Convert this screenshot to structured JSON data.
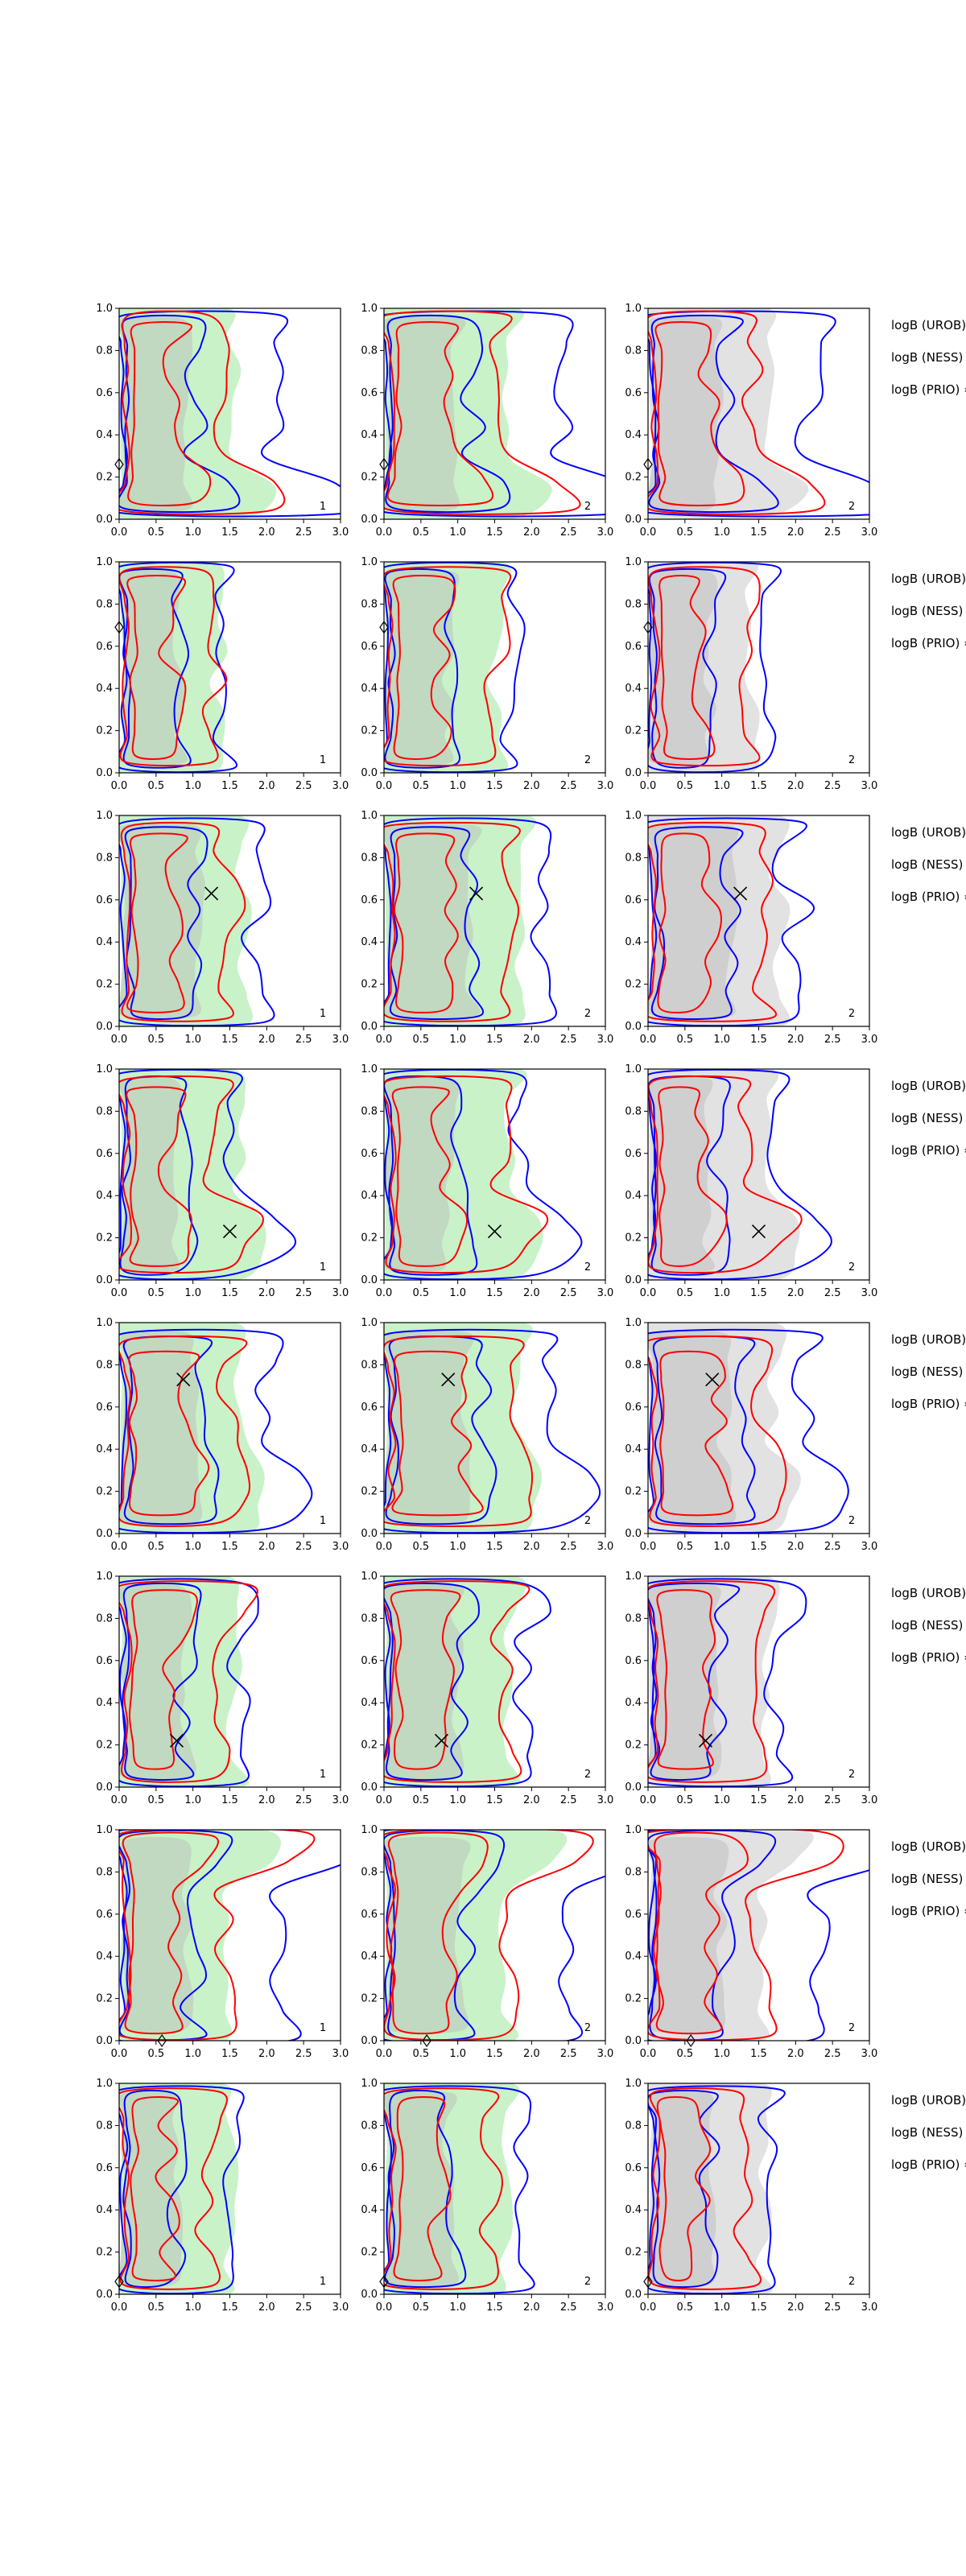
{
  "figure": {
    "colors": {
      "blue": "#0000ff",
      "red": "#ff0000",
      "green_fill": "#c9f2c9",
      "gray_fill": "#d8d8d8"
    },
    "side_labels": [
      "logB (UROB) =",
      "logB (NESS) =",
      "logB (PRIO) ="
    ],
    "axes": {
      "xlim": [
        0,
        3.0
      ],
      "ylim": [
        0,
        1.0
      ],
      "xticks": [
        "0.0",
        "0.5",
        "1.0",
        "1.5",
        "2.0",
        "2.5",
        "3.0"
      ],
      "yticks": [
        "0.0",
        "0.2",
        "0.4",
        "0.6",
        "0.8",
        "1.0"
      ]
    },
    "column_annotations": [
      "1",
      "2",
      "2"
    ],
    "column_fills": [
      "green",
      "green",
      "gray"
    ]
  },
  "chart_data": [
    {
      "type": "contour",
      "row": 1,
      "xlim": [
        0,
        3
      ],
      "ylim": [
        0,
        1
      ],
      "annotation": [
        "1",
        "2",
        "2"
      ],
      "marker": {
        "shape": "diamond",
        "x": 0.0,
        "y": 0.26
      },
      "series": [
        {
          "name": "blue contours",
          "color": "#0000ff"
        },
        {
          "name": "red contours",
          "color": "#ff0000"
        }
      ]
    },
    {
      "type": "contour",
      "row": 2,
      "xlim": [
        0,
        3
      ],
      "ylim": [
        0,
        1
      ],
      "annotation": [
        "1",
        "2",
        "2"
      ],
      "marker": {
        "shape": "diamond",
        "x": 0.0,
        "y": 0.69
      },
      "series": [
        {
          "name": "blue contours",
          "color": "#0000ff"
        },
        {
          "name": "red contours",
          "color": "#ff0000"
        }
      ]
    },
    {
      "type": "contour",
      "row": 3,
      "xlim": [
        0,
        3
      ],
      "ylim": [
        0,
        1
      ],
      "annotation": [
        "1",
        "2",
        "2"
      ],
      "marker": {
        "shape": "x",
        "x": 1.25,
        "y": 0.63
      },
      "series": [
        {
          "name": "blue contours",
          "color": "#0000ff"
        },
        {
          "name": "red contours",
          "color": "#ff0000"
        }
      ]
    },
    {
      "type": "contour",
      "row": 4,
      "xlim": [
        0,
        3
      ],
      "ylim": [
        0,
        1
      ],
      "annotation": [
        "1",
        "2",
        "2"
      ],
      "marker": {
        "shape": "x",
        "x": 1.5,
        "y": 0.23
      },
      "series": [
        {
          "name": "blue contours",
          "color": "#0000ff"
        },
        {
          "name": "red contours",
          "color": "#ff0000"
        }
      ]
    },
    {
      "type": "contour",
      "row": 5,
      "xlim": [
        0,
        3
      ],
      "ylim": [
        0,
        1
      ],
      "annotation": [
        "1",
        "2",
        "2"
      ],
      "marker": {
        "shape": "x",
        "x": 0.87,
        "y": 0.73
      },
      "series": [
        {
          "name": "blue contours",
          "color": "#0000ff"
        },
        {
          "name": "red contours",
          "color": "#ff0000"
        }
      ]
    },
    {
      "type": "contour",
      "row": 6,
      "xlim": [
        0,
        3
      ],
      "ylim": [
        0,
        1
      ],
      "annotation": [
        "1",
        "2",
        "2"
      ],
      "marker": {
        "shape": "x",
        "x": 0.78,
        "y": 0.22
      },
      "series": [
        {
          "name": "blue contours",
          "color": "#0000ff"
        },
        {
          "name": "red contours",
          "color": "#ff0000"
        }
      ]
    },
    {
      "type": "contour",
      "row": 7,
      "xlim": [
        0,
        3
      ],
      "ylim": [
        0,
        1
      ],
      "annotation": [
        "1",
        "2",
        "2"
      ],
      "marker": {
        "shape": "diamond",
        "x": 0.58,
        "y": 0.0
      },
      "series": [
        {
          "name": "blue contours",
          "color": "#0000ff"
        },
        {
          "name": "red contours",
          "color": "#ff0000"
        }
      ]
    },
    {
      "type": "contour",
      "row": 8,
      "xlim": [
        0,
        3
      ],
      "ylim": [
        0,
        1
      ],
      "annotation": [
        "1",
        "2",
        "2"
      ],
      "marker": {
        "shape": "diamond",
        "x": 0.0,
        "y": 0.06
      },
      "series": [
        {
          "name": "blue contours",
          "color": "#0000ff"
        },
        {
          "name": "red contours",
          "color": "#ff0000"
        }
      ]
    }
  ]
}
